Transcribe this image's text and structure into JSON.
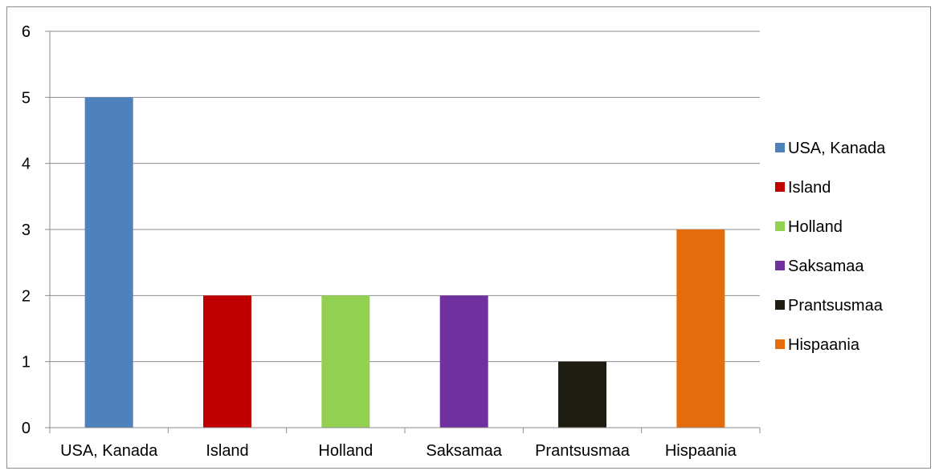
{
  "chart_data": {
    "type": "bar",
    "title": "",
    "xlabel": "",
    "ylabel": "",
    "categories": [
      "USA, Kanada",
      "Island",
      "Holland",
      "Saksamaa",
      "Prantsusmaa",
      "Hispaania"
    ],
    "values": [
      5,
      2,
      2,
      2,
      1,
      3
    ],
    "colors": [
      "#4f81bd",
      "#c00000",
      "#92d050",
      "#7030a0",
      "#1f1c12",
      "#e46c0a"
    ],
    "ylim": [
      0,
      6
    ],
    "yticks": [
      "0",
      "1",
      "2",
      "3",
      "4",
      "5",
      "6"
    ],
    "grid": true,
    "legend_position": "right",
    "legend": [
      "USA, Kanada",
      "Island",
      "Holland",
      "Saksamaa",
      "Prantsusmaa",
      "Hispaania"
    ]
  }
}
